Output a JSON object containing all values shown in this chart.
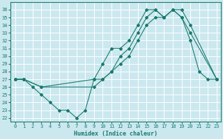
{
  "xlabel": "Humidex (Indice chaleur)",
  "background_color": "#cbe8ef",
  "grid_color": "#ffffff",
  "line_color": "#1a7a6e",
  "xlim": [
    -0.5,
    23.5
  ],
  "ylim": [
    21.5,
    37.0
  ],
  "xticks": [
    0,
    1,
    2,
    3,
    4,
    5,
    6,
    7,
    8,
    9,
    10,
    11,
    12,
    13,
    14,
    15,
    16,
    17,
    18,
    19,
    20,
    21,
    22,
    23
  ],
  "yticks": [
    22,
    23,
    24,
    25,
    26,
    27,
    28,
    29,
    30,
    31,
    32,
    33,
    34,
    35,
    36
  ],
  "line1_x": [
    0,
    1,
    2,
    3,
    4,
    5,
    6,
    7,
    8,
    9,
    10,
    11,
    12,
    13,
    14,
    15,
    16,
    17,
    18,
    19,
    20,
    21,
    22,
    23
  ],
  "line1_y": [
    27,
    27,
    26,
    25,
    24,
    23,
    23,
    22,
    23,
    27,
    29,
    31,
    31,
    32,
    34,
    36,
    36,
    35,
    36,
    35,
    32,
    28,
    27,
    27
  ],
  "line2_x": [
    0,
    1,
    3,
    9,
    10,
    11,
    12,
    13,
    14,
    15,
    16,
    17,
    18,
    19,
    20,
    23
  ],
  "line2_y": [
    27,
    27,
    26,
    27,
    27,
    28,
    29,
    30,
    32,
    34,
    35,
    35,
    36,
    36,
    34,
    27
  ],
  "line3_x": [
    0,
    1,
    3,
    9,
    10,
    11,
    12,
    13,
    14,
    15,
    16,
    17,
    18,
    19,
    20,
    23
  ],
  "line3_y": [
    27,
    27,
    26,
    26,
    27,
    28,
    30,
    31,
    33,
    35,
    36,
    35,
    36,
    35,
    33,
    27
  ],
  "tick_fontsize": 5,
  "xlabel_fontsize": 6
}
